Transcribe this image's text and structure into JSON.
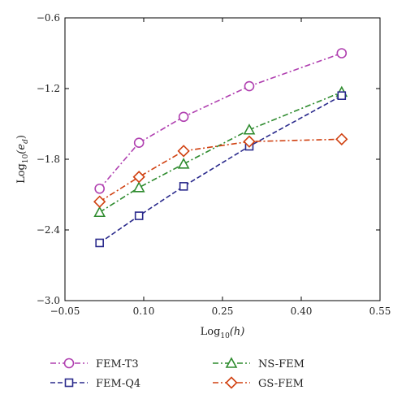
{
  "chart_data": {
    "type": "line",
    "title": "",
    "xlabel": {
      "prefix": "Log",
      "sub": "10",
      "suffix": "(h)"
    },
    "ylabel": {
      "prefix": "Log",
      "sub": "10",
      "suffix": "(e",
      "suffix_sub": "d",
      "close": ")"
    },
    "xlim": [
      -0.05,
      0.55
    ],
    "ylim": [
      -3.0,
      -0.6
    ],
    "xticks": [
      -0.05,
      0.1,
      0.25,
      0.4,
      0.55
    ],
    "xtick_labels": [
      "−0.05",
      "0.10",
      "0.25",
      "0.40",
      "0.55"
    ],
    "yticks": [
      -3.0,
      -2.4,
      -1.8,
      -1.2,
      -0.6
    ],
    "ytick_labels": [
      "−3.0",
      "−2.4",
      "−1.8",
      "−1.2",
      "−0.6"
    ],
    "grid": false,
    "legend_position": "bottom",
    "series": [
      {
        "name": "FEM-T3",
        "marker": "circle",
        "color": "#b040b0",
        "dash": "dashdot",
        "x": [
          0.016,
          0.091,
          0.176,
          0.301,
          0.477
        ],
        "y": [
          -2.05,
          -1.66,
          -1.44,
          -1.18,
          -0.9
        ]
      },
      {
        "name": "NS-FEM",
        "marker": "triangle",
        "color": "#2e8b2e",
        "dash": "dashdot",
        "x": [
          0.016,
          0.091,
          0.176,
          0.301,
          0.477
        ],
        "y": [
          -2.25,
          -2.04,
          -1.84,
          -1.55,
          -1.23
        ]
      },
      {
        "name": "FEM-Q4",
        "marker": "square",
        "color": "#2a2a8c",
        "dash": "dash",
        "x": [
          0.016,
          0.091,
          0.176,
          0.301,
          0.477
        ],
        "y": [
          -2.51,
          -2.28,
          -2.03,
          -1.69,
          -1.26
        ]
      },
      {
        "name": "GS-FEM",
        "marker": "diamond",
        "color": "#d04010",
        "dash": "dashdot",
        "x": [
          0.016,
          0.091,
          0.176,
          0.301,
          0.477
        ],
        "y": [
          -2.16,
          -1.95,
          -1.73,
          -1.65,
          -1.63
        ]
      }
    ]
  }
}
